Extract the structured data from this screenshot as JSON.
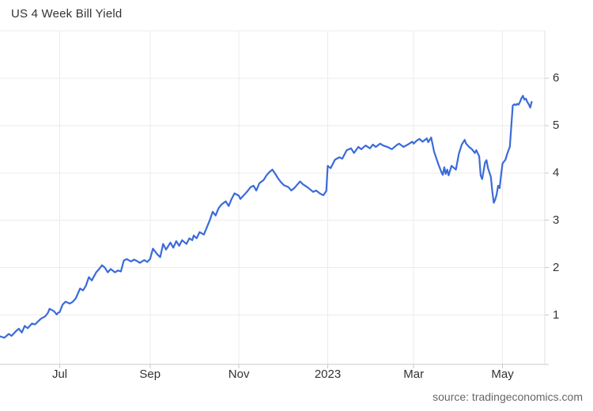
{
  "header": {
    "title": "US 4 Week Bill Yield"
  },
  "footer": {
    "source_text": "source: tradingeconomics.com"
  },
  "colors": {
    "line": "#3B6BD9",
    "grid": "#ebebeb",
    "axis_bottom": "#c9c9c9",
    "axis_right": "#e2e2e2",
    "tick": "#c9c9c9",
    "label_text": "#333333"
  },
  "chart_data": {
    "type": "line",
    "title": "US 4 Week Bill Yield",
    "legend": "none",
    "grid": true,
    "y_axis_side": "right",
    "x_range": [
      "2022-05-21",
      "2023-05-30"
    ],
    "y_range": [
      0,
      7
    ],
    "y_ticks": [
      1,
      2,
      3,
      4,
      5,
      6
    ],
    "x_ticks": [
      {
        "label": "Jul",
        "date": "2022-07-01"
      },
      {
        "label": "Sep",
        "date": "2022-09-01"
      },
      {
        "label": "Nov",
        "date": "2022-11-01"
      },
      {
        "label": "2023",
        "date": "2023-01-01"
      },
      {
        "label": "Mar",
        "date": "2023-03-01"
      },
      {
        "label": "May",
        "date": "2023-05-01"
      }
    ],
    "series": [
      {
        "name": "US 4 Week Bill Yield",
        "color": "#3B6BD9",
        "points": [
          [
            "2022-05-21",
            0.55
          ],
          [
            "2022-05-24",
            0.52
          ],
          [
            "2022-05-27",
            0.6
          ],
          [
            "2022-05-29",
            0.56
          ],
          [
            "2022-06-01",
            0.66
          ],
          [
            "2022-06-03",
            0.71
          ],
          [
            "2022-06-05",
            0.63
          ],
          [
            "2022-06-07",
            0.77
          ],
          [
            "2022-06-09",
            0.72
          ],
          [
            "2022-06-12",
            0.82
          ],
          [
            "2022-06-14",
            0.8
          ],
          [
            "2022-06-16",
            0.86
          ],
          [
            "2022-06-18",
            0.92
          ],
          [
            "2022-06-21",
            0.97
          ],
          [
            "2022-06-23",
            1.05
          ],
          [
            "2022-06-24",
            1.13
          ],
          [
            "2022-06-27",
            1.08
          ],
          [
            "2022-06-29",
            1.01
          ],
          [
            "2022-06-30",
            1.05
          ],
          [
            "2022-07-01",
            1.06
          ],
          [
            "2022-07-03",
            1.22
          ],
          [
            "2022-07-05",
            1.28
          ],
          [
            "2022-07-08",
            1.24
          ],
          [
            "2022-07-10",
            1.28
          ],
          [
            "2022-07-12",
            1.35
          ],
          [
            "2022-07-15",
            1.56
          ],
          [
            "2022-07-17",
            1.52
          ],
          [
            "2022-07-19",
            1.62
          ],
          [
            "2022-07-21",
            1.8
          ],
          [
            "2022-07-23",
            1.73
          ],
          [
            "2022-07-26",
            1.9
          ],
          [
            "2022-07-28",
            1.97
          ],
          [
            "2022-07-30",
            2.05
          ],
          [
            "2022-08-01",
            2.0
          ],
          [
            "2022-08-03",
            1.9
          ],
          [
            "2022-08-05",
            1.97
          ],
          [
            "2022-08-08",
            1.9
          ],
          [
            "2022-08-10",
            1.94
          ],
          [
            "2022-08-12",
            1.92
          ],
          [
            "2022-08-14",
            2.15
          ],
          [
            "2022-08-16",
            2.18
          ],
          [
            "2022-08-19",
            2.13
          ],
          [
            "2022-08-21",
            2.17
          ],
          [
            "2022-08-23",
            2.14
          ],
          [
            "2022-08-25",
            2.1
          ],
          [
            "2022-08-28",
            2.16
          ],
          [
            "2022-08-30",
            2.12
          ],
          [
            "2022-09-01",
            2.18
          ],
          [
            "2022-09-03",
            2.4
          ],
          [
            "2022-09-06",
            2.28
          ],
          [
            "2022-09-08",
            2.22
          ],
          [
            "2022-09-10",
            2.5
          ],
          [
            "2022-09-12",
            2.38
          ],
          [
            "2022-09-15",
            2.53
          ],
          [
            "2022-09-17",
            2.42
          ],
          [
            "2022-09-19",
            2.56
          ],
          [
            "2022-09-21",
            2.46
          ],
          [
            "2022-09-23",
            2.58
          ],
          [
            "2022-09-26",
            2.5
          ],
          [
            "2022-09-28",
            2.62
          ],
          [
            "2022-09-30",
            2.58
          ],
          [
            "2022-10-01",
            2.68
          ],
          [
            "2022-10-03",
            2.62
          ],
          [
            "2022-10-05",
            2.75
          ],
          [
            "2022-10-08",
            2.7
          ],
          [
            "2022-10-10",
            2.85
          ],
          [
            "2022-10-12",
            3.0
          ],
          [
            "2022-10-14",
            3.18
          ],
          [
            "2022-10-16",
            3.1
          ],
          [
            "2022-10-18",
            3.25
          ],
          [
            "2022-10-20",
            3.33
          ],
          [
            "2022-10-23",
            3.4
          ],
          [
            "2022-10-25",
            3.3
          ],
          [
            "2022-10-27",
            3.45
          ],
          [
            "2022-10-29",
            3.57
          ],
          [
            "2022-11-01",
            3.52
          ],
          [
            "2022-11-02",
            3.45
          ],
          [
            "2022-11-05",
            3.55
          ],
          [
            "2022-11-07",
            3.62
          ],
          [
            "2022-11-09",
            3.7
          ],
          [
            "2022-11-11",
            3.73
          ],
          [
            "2022-11-13",
            3.63
          ],
          [
            "2022-11-15",
            3.78
          ],
          [
            "2022-11-18",
            3.85
          ],
          [
            "2022-11-20",
            3.95
          ],
          [
            "2022-11-22",
            4.02
          ],
          [
            "2022-11-24",
            4.07
          ],
          [
            "2022-11-26",
            3.98
          ],
          [
            "2022-11-28",
            3.88
          ],
          [
            "2022-11-30",
            3.8
          ],
          [
            "2022-12-02",
            3.74
          ],
          [
            "2022-12-05",
            3.7
          ],
          [
            "2022-12-07",
            3.63
          ],
          [
            "2022-12-09",
            3.68
          ],
          [
            "2022-12-11",
            3.75
          ],
          [
            "2022-12-13",
            3.82
          ],
          [
            "2022-12-15",
            3.76
          ],
          [
            "2022-12-18",
            3.7
          ],
          [
            "2022-12-20",
            3.65
          ],
          [
            "2022-12-22",
            3.6
          ],
          [
            "2022-12-24",
            3.63
          ],
          [
            "2022-12-27",
            3.56
          ],
          [
            "2022-12-29",
            3.53
          ],
          [
            "2022-12-31",
            3.62
          ],
          [
            "2023-01-01",
            4.15
          ],
          [
            "2023-01-03",
            4.1
          ],
          [
            "2023-01-06",
            4.28
          ],
          [
            "2023-01-09",
            4.33
          ],
          [
            "2023-01-11",
            4.3
          ],
          [
            "2023-01-14",
            4.48
          ],
          [
            "2023-01-17",
            4.52
          ],
          [
            "2023-01-19",
            4.42
          ],
          [
            "2023-01-22",
            4.55
          ],
          [
            "2023-01-24",
            4.5
          ],
          [
            "2023-01-27",
            4.58
          ],
          [
            "2023-01-30",
            4.52
          ],
          [
            "2023-02-01",
            4.6
          ],
          [
            "2023-02-03",
            4.55
          ],
          [
            "2023-02-06",
            4.62
          ],
          [
            "2023-02-08",
            4.58
          ],
          [
            "2023-02-11",
            4.55
          ],
          [
            "2023-02-14",
            4.5
          ],
          [
            "2023-02-17",
            4.58
          ],
          [
            "2023-02-19",
            4.62
          ],
          [
            "2023-02-22",
            4.55
          ],
          [
            "2023-02-25",
            4.6
          ],
          [
            "2023-02-28",
            4.66
          ],
          [
            "2023-03-01",
            4.62
          ],
          [
            "2023-03-03",
            4.68
          ],
          [
            "2023-03-05",
            4.72
          ],
          [
            "2023-03-07",
            4.66
          ],
          [
            "2023-03-08",
            4.68
          ],
          [
            "2023-03-10",
            4.73
          ],
          [
            "2023-03-11",
            4.65
          ],
          [
            "2023-03-13",
            4.75
          ],
          [
            "2023-03-15",
            4.45
          ],
          [
            "2023-03-18",
            4.18
          ],
          [
            "2023-03-20",
            4.02
          ],
          [
            "2023-03-21",
            3.96
          ],
          [
            "2023-03-22",
            4.12
          ],
          [
            "2023-03-23",
            3.98
          ],
          [
            "2023-03-24",
            4.07
          ],
          [
            "2023-03-25",
            3.95
          ],
          [
            "2023-03-27",
            4.15
          ],
          [
            "2023-03-30",
            4.07
          ],
          [
            "2023-04-01",
            4.4
          ],
          [
            "2023-04-03",
            4.6
          ],
          [
            "2023-04-05",
            4.7
          ],
          [
            "2023-04-06",
            4.62
          ],
          [
            "2023-04-08",
            4.55
          ],
          [
            "2023-04-10",
            4.5
          ],
          [
            "2023-04-12",
            4.42
          ],
          [
            "2023-04-13",
            4.48
          ],
          [
            "2023-04-15",
            4.35
          ],
          [
            "2023-04-16",
            3.95
          ],
          [
            "2023-04-17",
            3.87
          ],
          [
            "2023-04-19",
            4.22
          ],
          [
            "2023-04-20",
            4.27
          ],
          [
            "2023-04-21",
            4.1
          ],
          [
            "2023-04-23",
            3.92
          ],
          [
            "2023-04-24",
            3.6
          ],
          [
            "2023-04-25",
            3.37
          ],
          [
            "2023-04-26",
            3.44
          ],
          [
            "2023-04-27",
            3.55
          ],
          [
            "2023-04-28",
            3.73
          ],
          [
            "2023-04-29",
            3.68
          ],
          [
            "2023-04-30",
            3.95
          ],
          [
            "2023-05-01",
            4.2
          ],
          [
            "2023-05-03",
            4.28
          ],
          [
            "2023-05-04",
            4.38
          ],
          [
            "2023-05-05",
            4.47
          ],
          [
            "2023-05-06",
            4.55
          ],
          [
            "2023-05-08",
            5.42
          ],
          [
            "2023-05-09",
            5.45
          ],
          [
            "2023-05-10",
            5.43
          ],
          [
            "2023-05-11",
            5.46
          ],
          [
            "2023-05-12",
            5.44
          ],
          [
            "2023-05-13",
            5.5
          ],
          [
            "2023-05-14",
            5.58
          ],
          [
            "2023-05-15",
            5.63
          ],
          [
            "2023-05-16",
            5.55
          ],
          [
            "2023-05-17",
            5.57
          ],
          [
            "2023-05-18",
            5.5
          ],
          [
            "2023-05-19",
            5.45
          ],
          [
            "2023-05-20",
            5.38
          ],
          [
            "2023-05-21",
            5.5
          ]
        ]
      }
    ]
  }
}
